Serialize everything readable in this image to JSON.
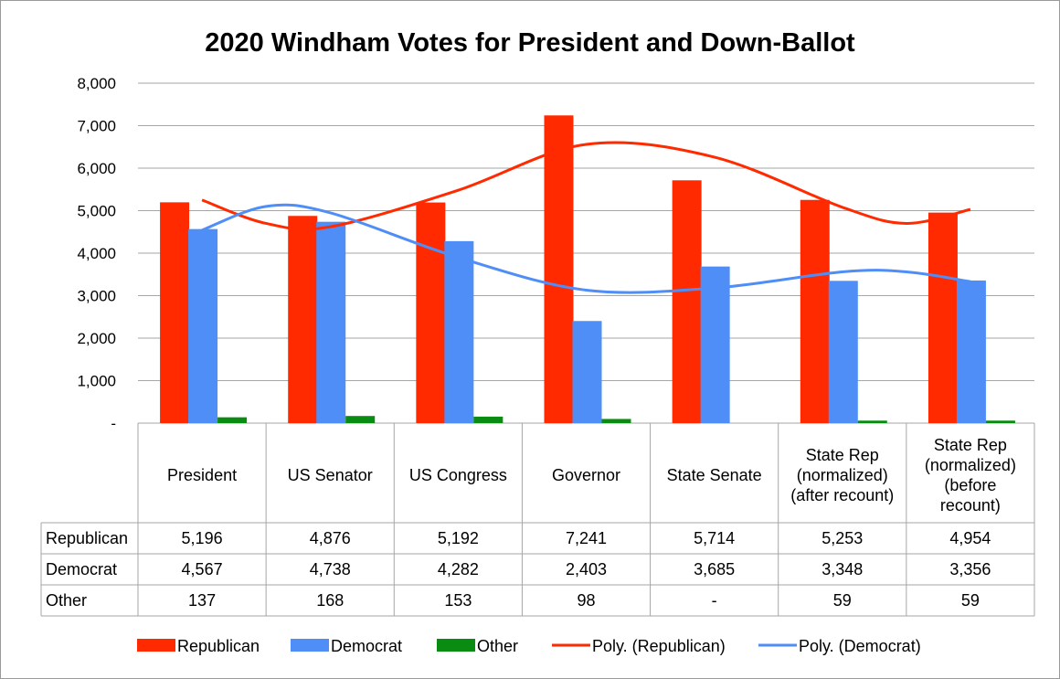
{
  "chart_data": {
    "type": "bar",
    "title": "2020 Windham Votes for President and Down-Ballot",
    "categories": [
      [
        "President"
      ],
      [
        "US Senator"
      ],
      [
        "US Congress"
      ],
      [
        "Governor"
      ],
      [
        "State Senate"
      ],
      [
        "State Rep",
        "(normalized)",
        "(after recount)"
      ],
      [
        "State Rep",
        "(normalized)",
        "(before",
        "recount)"
      ]
    ],
    "ylim": [
      0,
      8000
    ],
    "yticks": [
      0,
      1000,
      2000,
      3000,
      4000,
      5000,
      6000,
      7000,
      8000
    ],
    "ytick_labels": [
      "-",
      "1,000",
      "2,000",
      "3,000",
      "4,000",
      "5,000",
      "6,000",
      "7,000",
      "8,000"
    ],
    "grid": true,
    "legend_position": "bottom",
    "series": [
      {
        "name": "Republican",
        "color": "#ff2a00",
        "values": [
          5196,
          4876,
          5192,
          7241,
          5714,
          5253,
          4954
        ],
        "labels": [
          "5,196",
          "4,876",
          "5,192",
          "7,241",
          "5,714",
          "5,253",
          "4,954"
        ]
      },
      {
        "name": "Democrat",
        "color": "#4f8ef7",
        "values": [
          4567,
          4738,
          4282,
          2403,
          3685,
          3348,
          3356
        ],
        "labels": [
          "4,567",
          "4,738",
          "4,282",
          "2,403",
          "3,685",
          "3,348",
          "3,356"
        ]
      },
      {
        "name": "Other",
        "color": "#0a8c12",
        "values": [
          137,
          168,
          153,
          98,
          0,
          59,
          59
        ],
        "labels": [
          "137",
          "168",
          "153",
          "98",
          "-",
          "59",
          "59"
        ]
      }
    ],
    "trendlines": [
      {
        "name": "Poly. (Republican)",
        "series": "Republican",
        "color": "#ff2a00",
        "points": [
          [
            0,
            5250
          ],
          [
            0.5,
            4700
          ],
          [
            1,
            4620
          ],
          [
            2,
            5480
          ],
          [
            3,
            6560
          ],
          [
            4,
            6260
          ],
          [
            5,
            5080
          ],
          [
            5.5,
            4700
          ],
          [
            6,
            5030
          ]
        ]
      },
      {
        "name": "Poly. (Democrat)",
        "series": "Democrat",
        "color": "#4f8ef7",
        "points": [
          [
            0,
            4540
          ],
          [
            0.5,
            5100
          ],
          [
            1,
            4950
          ],
          [
            2,
            3900
          ],
          [
            3,
            3130
          ],
          [
            4,
            3180
          ],
          [
            5,
            3560
          ],
          [
            5.5,
            3560
          ],
          [
            6,
            3330
          ]
        ]
      }
    ]
  }
}
